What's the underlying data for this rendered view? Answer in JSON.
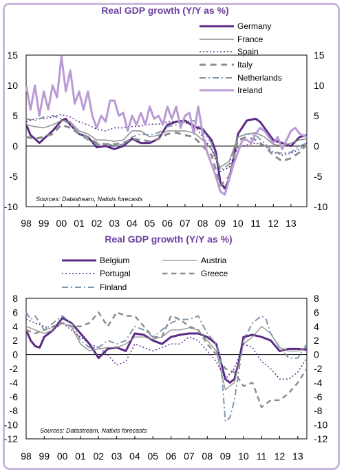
{
  "chart_data": [
    {
      "type": "line",
      "title": "Real GDP growth (Y/Y as %)",
      "source": "Sources: Datastream, Natixis forecasts",
      "xticks": [
        "98",
        "99",
        "00",
        "01",
        "02",
        "03",
        "04",
        "05",
        "06",
        "07",
        "08",
        "09",
        "10",
        "11",
        "12",
        "13"
      ],
      "xlim": [
        1998,
        2013.9
      ],
      "ylim": [
        -10,
        15
      ],
      "yticks": [
        15,
        10,
        5,
        0,
        -5,
        -10
      ],
      "yticklabels": [
        "15",
        "10",
        "5",
        "0",
        "-5",
        "-10"
      ],
      "grid": false,
      "legend_position": "top-right",
      "series": [
        {
          "name": "Germany",
          "color": "#5b2a86",
          "style": "solid",
          "width": 3,
          "x": [
            1998,
            1998.25,
            1998.5,
            1998.75,
            1999,
            1999.5,
            2000,
            2000.25,
            2000.5,
            2001,
            2001.5,
            2002,
            2002.5,
            2003,
            2003.5,
            2004,
            2004.5,
            2005,
            2005.5,
            2006,
            2006.5,
            2007,
            2007.5,
            2008,
            2008.5,
            2008.75,
            2009,
            2009.25,
            2009.5,
            2009.75,
            2010,
            2010.5,
            2011,
            2011.25,
            2011.5,
            2012,
            2012.5,
            2013,
            2013.5,
            2013.9
          ],
          "y": [
            3.6,
            1.8,
            1.2,
            0.5,
            1.2,
            2.5,
            4.2,
            4.5,
            3.5,
            2.0,
            1.5,
            -0.2,
            0,
            -0.5,
            0,
            1.2,
            0.5,
            0.5,
            1.2,
            3.5,
            4.0,
            4.2,
            3.2,
            2.8,
            1.0,
            -1.0,
            -6.0,
            -7.0,
            -5.5,
            -2.0,
            2.0,
            4.2,
            4.5,
            4.0,
            3.0,
            1.0,
            0.5,
            0.0,
            1.5,
            1.8
          ]
        },
        {
          "name": "France",
          "color": "#8c8c8c",
          "style": "solid",
          "width": 1.5,
          "x": [
            1998,
            1998.5,
            1999,
            1999.5,
            2000,
            2000.5,
            2001,
            2001.5,
            2002,
            2002.5,
            2003,
            2003.5,
            2004,
            2004.5,
            2005,
            2005.5,
            2006,
            2006.5,
            2007,
            2007.5,
            2008,
            2008.5,
            2009,
            2009.5,
            2010,
            2010.5,
            2011,
            2011.5,
            2012,
            2012.5,
            2013,
            2013.5,
            2013.9
          ],
          "y": [
            3.5,
            3.2,
            3.0,
            3.5,
            4.2,
            4.0,
            2.5,
            2.0,
            1.0,
            1.0,
            0.8,
            1.0,
            2.5,
            2.5,
            1.5,
            1.8,
            2.5,
            2.5,
            2.5,
            2.2,
            1.0,
            -0.5,
            -3.5,
            -2.5,
            1.5,
            2.0,
            2.2,
            1.5,
            0.3,
            0.0,
            0.5,
            1.0,
            1.2
          ]
        },
        {
          "name": "Spain",
          "color": "#5b2a86",
          "style": "dotted",
          "width": 1.5,
          "x": [
            1998,
            1998.5,
            1999,
            1999.5,
            2000,
            2000.5,
            2001,
            2001.5,
            2002,
            2002.5,
            2003,
            2003.5,
            2004,
            2004.5,
            2005,
            2005.5,
            2006,
            2006.5,
            2007,
            2007.5,
            2008,
            2008.5,
            2009,
            2009.5,
            2010,
            2010.5,
            2011,
            2011.5,
            2012,
            2012.5,
            2013,
            2013.5,
            2013.9
          ],
          "y": [
            4.0,
            4.5,
            4.5,
            4.8,
            5.2,
            4.8,
            4.0,
            3.5,
            2.8,
            2.5,
            3.0,
            3.0,
            3.2,
            3.3,
            3.6,
            3.6,
            4.0,
            4.1,
            3.8,
            3.5,
            1.5,
            -0.5,
            -4.2,
            -3.5,
            -0.2,
            0.2,
            0.5,
            0.0,
            -1.0,
            -1.5,
            -1.2,
            -0.5,
            0.5
          ]
        },
        {
          "name": "Italy",
          "color": "#8c8c8c",
          "style": "dashed",
          "width": 3,
          "x": [
            1998,
            1998.5,
            1999,
            1999.5,
            2000,
            2000.5,
            2001,
            2001.5,
            2002,
            2002.5,
            2003,
            2003.5,
            2004,
            2004.5,
            2005,
            2005.5,
            2006,
            2006.5,
            2007,
            2007.5,
            2008,
            2008.5,
            2009,
            2009.5,
            2010,
            2010.5,
            2011,
            2011.5,
            2012,
            2012.5,
            2013,
            2013.5,
            2013.9
          ],
          "y": [
            1.5,
            1.2,
            1.5,
            2.0,
            3.5,
            3.0,
            2.0,
            1.5,
            0.5,
            0.3,
            0.3,
            0.5,
            1.2,
            1.0,
            0.8,
            1.2,
            2.0,
            2.2,
            1.8,
            1.5,
            0.0,
            -1.5,
            -6.5,
            -5.0,
            1.0,
            1.5,
            1.0,
            0.0,
            -1.5,
            -2.5,
            -2.0,
            -1.0,
            0.3
          ]
        },
        {
          "name": "Netherlands",
          "color": "#7f96aa",
          "style": "dashdot",
          "width": 2,
          "x": [
            1998,
            1998.5,
            1999,
            1999.5,
            2000,
            2000.5,
            2001,
            2001.5,
            2002,
            2002.5,
            2003,
            2003.5,
            2004,
            2004.5,
            2005,
            2005.5,
            2006,
            2006.5,
            2007,
            2007.5,
            2008,
            2008.5,
            2009,
            2009.5,
            2010,
            2010.5,
            2011,
            2011.5,
            2012,
            2012.5,
            2013,
            2013.5,
            2013.9
          ],
          "y": [
            4.5,
            4.2,
            4.8,
            5.0,
            4.5,
            3.5,
            2.0,
            1.0,
            0.2,
            0.5,
            0.0,
            0.3,
            1.5,
            2.0,
            1.8,
            2.2,
            3.2,
            3.5,
            4.0,
            4.2,
            2.5,
            0.5,
            -4.0,
            -3.0,
            1.5,
            2.0,
            1.8,
            0.5,
            -1.0,
            -1.2,
            -1.0,
            0.0,
            0.5
          ]
        },
        {
          "name": "Ireland",
          "color": "#b99ad4",
          "style": "solid",
          "width": 3,
          "x": [
            1998,
            1998.25,
            1998.5,
            1998.75,
            1999,
            1999.25,
            1999.5,
            1999.75,
            2000,
            2000.25,
            2000.5,
            2000.75,
            2001,
            2001.25,
            2001.5,
            2001.75,
            2002,
            2002.25,
            2002.5,
            2002.75,
            2003,
            2003.25,
            2003.5,
            2003.75,
            2004,
            2004.25,
            2004.5,
            2004.75,
            2005,
            2005.25,
            2005.5,
            2005.75,
            2006,
            2006.25,
            2006.5,
            2006.75,
            2007,
            2007.25,
            2007.5,
            2007.75,
            2008,
            2008.25,
            2008.5,
            2008.75,
            2009,
            2009.25,
            2009.5,
            2009.75,
            2010,
            2010.25,
            2010.5,
            2010.75,
            2011,
            2011.25,
            2011.5,
            2011.75,
            2012,
            2012.25,
            2012.5,
            2012.75,
            2013,
            2013.25,
            2013.5,
            2013.9
          ],
          "y": [
            10,
            6,
            10,
            5,
            9,
            6,
            10,
            8,
            14.8,
            9,
            12.5,
            7,
            9,
            6,
            9,
            5,
            3,
            5,
            4,
            7.5,
            7.5,
            5,
            5.5,
            2.5,
            5,
            3.5,
            5.5,
            3.5,
            6.5,
            4.5,
            5,
            3.5,
            6.5,
            4.5,
            6.5,
            3,
            5,
            5.5,
            2,
            6.5,
            2,
            -1,
            -3,
            -5,
            -7.5,
            -8,
            -5.5,
            -3,
            -1,
            1,
            1,
            0.5,
            2,
            3,
            2.5,
            1.5,
            0.5,
            1.5,
            -0.5,
            1,
            2.5,
            3,
            2,
            1.5
          ]
        }
      ]
    },
    {
      "type": "line",
      "title": "Real GDP growth (Y/Y as %)",
      "source": "Sources: Datastream, Natixis forecasts",
      "xticks": [
        "98",
        "99",
        "00",
        "01",
        "02",
        "03",
        "04",
        "05",
        "06",
        "07",
        "08",
        "09",
        "10",
        "11",
        "12",
        "13"
      ],
      "xlim": [
        1998,
        2013.5
      ],
      "ylim": [
        -12,
        8
      ],
      "yticks": [
        8,
        6,
        4,
        2,
        0,
        -2,
        -4,
        -6,
        -8,
        -10,
        -12
      ],
      "yticklabels": [
        "8",
        "6",
        "4",
        "2",
        "0",
        "-2",
        "-4",
        "-6",
        "-8",
        "-10",
        "-12"
      ],
      "grid": false,
      "legend_position": "top",
      "series": [
        {
          "name": "Belgium",
          "color": "#5b2a86",
          "style": "solid",
          "width": 3,
          "x": [
            1998,
            1998.25,
            1998.5,
            1998.75,
            1999,
            1999.5,
            2000,
            2000.5,
            2001,
            2001.5,
            2002,
            2002.5,
            2003,
            2003.5,
            2004,
            2004.5,
            2005,
            2005.5,
            2006,
            2006.5,
            2007,
            2007.5,
            2008,
            2008.5,
            2009,
            2009.25,
            2009.5,
            2009.75,
            2010,
            2010.5,
            2011,
            2011.5,
            2012,
            2012.5,
            2013,
            2013.5
          ],
          "y": [
            3.5,
            2.0,
            1.2,
            1.0,
            2.5,
            3.5,
            5.2,
            4.5,
            3.0,
            1.5,
            -0.5,
            0.8,
            1.0,
            0.5,
            3.0,
            2.8,
            2.0,
            1.5,
            2.5,
            2.8,
            3.0,
            3.0,
            2.5,
            1.5,
            -3.5,
            -4.0,
            -3.5,
            -1.0,
            2.5,
            2.8,
            2.5,
            2.0,
            0.5,
            0.8,
            0.8,
            0.7
          ]
        },
        {
          "name": "Austria",
          "color": "#8c8c8c",
          "style": "solid",
          "width": 1.3,
          "x": [
            1998,
            1998.5,
            1999,
            1999.5,
            2000,
            2000.5,
            2001,
            2001.5,
            2002,
            2002.5,
            2003,
            2003.5,
            2004,
            2004.5,
            2005,
            2005.5,
            2006,
            2006.5,
            2007,
            2007.5,
            2008,
            2008.5,
            2009,
            2009.5,
            2010,
            2010.5,
            2011,
            2011.5,
            2012,
            2012.5,
            2013,
            2013.5
          ],
          "y": [
            4.0,
            3.5,
            3.0,
            3.5,
            4.5,
            4.0,
            1.5,
            0.5,
            0.8,
            1.0,
            1.0,
            1.5,
            2.5,
            2.5,
            2.2,
            2.5,
            3.5,
            3.5,
            3.8,
            3.5,
            2.0,
            0.5,
            -5.0,
            -4.0,
            1.5,
            2.5,
            4.0,
            3.0,
            1.0,
            0.5,
            0.5,
            1.0
          ]
        },
        {
          "name": "Portugal",
          "color": "#5b2a86",
          "style": "dotted",
          "width": 1.5,
          "x": [
            1998,
            1998.5,
            1999,
            1999.5,
            2000,
            2000.5,
            2001,
            2001.5,
            2002,
            2002.5,
            2003,
            2003.5,
            2004,
            2004.5,
            2005,
            2005.5,
            2006,
            2006.5,
            2007,
            2007.5,
            2008,
            2008.5,
            2009,
            2009.5,
            2010,
            2010.5,
            2011,
            2011.5,
            2012,
            2012.5,
            2013,
            2013.5
          ],
          "y": [
            5.0,
            4.5,
            4.0,
            3.5,
            4.5,
            3.5,
            2.5,
            1.5,
            1.0,
            0.0,
            -1.5,
            -1.0,
            1.5,
            1.0,
            0.5,
            1.0,
            1.5,
            1.5,
            2.5,
            2.0,
            0.5,
            -1.0,
            -3.5,
            -2.0,
            1.5,
            1.0,
            -1.0,
            -2.0,
            -3.5,
            -3.5,
            -2.5,
            -0.5
          ]
        },
        {
          "name": "Greece",
          "color": "#8c8c8c",
          "style": "dashed",
          "width": 2.5,
          "x": [
            1998,
            1998.5,
            1999,
            1999.5,
            2000,
            2000.5,
            2001,
            2001.5,
            2002,
            2002.5,
            2003,
            2003.5,
            2004,
            2004.5,
            2005,
            2005.5,
            2006,
            2006.5,
            2007,
            2007.5,
            2008,
            2008.5,
            2009,
            2009.5,
            2010,
            2010.5,
            2011,
            2011.5,
            2012,
            2012.5,
            2013,
            2013.5
          ],
          "y": [
            3.5,
            3.0,
            3.5,
            4.0,
            4.5,
            4.0,
            4.0,
            4.5,
            6.0,
            4.0,
            6.0,
            5.5,
            5.5,
            4.0,
            2.5,
            2.5,
            5.5,
            5.0,
            4.0,
            3.5,
            1.5,
            0.0,
            -2.0,
            -2.5,
            -4.5,
            -4.0,
            -7.5,
            -6.5,
            -6.5,
            -5.5,
            -4.0,
            -2.0
          ]
        },
        {
          "name": "Finland",
          "color": "#7f96aa",
          "style": "dashdot",
          "width": 2,
          "x": [
            1998,
            1998.25,
            1998.5,
            1998.75,
            1999,
            1999.5,
            2000,
            2000.25,
            2000.5,
            2001,
            2001.5,
            2002,
            2002.5,
            2003,
            2003.5,
            2004,
            2004.5,
            2005,
            2005.5,
            2006,
            2006.5,
            2007,
            2007.5,
            2008,
            2008.5,
            2008.75,
            2009,
            2009.25,
            2009.5,
            2010,
            2010.5,
            2011,
            2011.25,
            2011.5,
            2012,
            2012.5,
            2013,
            2013.25,
            2013.5
          ],
          "y": [
            6.0,
            5.0,
            5.5,
            4.5,
            3.5,
            4.5,
            5.5,
            5.0,
            4.5,
            2.0,
            1.0,
            1.0,
            2.0,
            1.5,
            2.0,
            4.0,
            3.5,
            2.5,
            3.5,
            4.5,
            5.0,
            5.0,
            5.5,
            3.0,
            1.5,
            -1.0,
            -9.5,
            -9.0,
            -6.5,
            2.0,
            4.5,
            5.5,
            5.0,
            3.0,
            1.0,
            -0.5,
            -0.5,
            0.5,
            1.5
          ]
        }
      ]
    }
  ]
}
